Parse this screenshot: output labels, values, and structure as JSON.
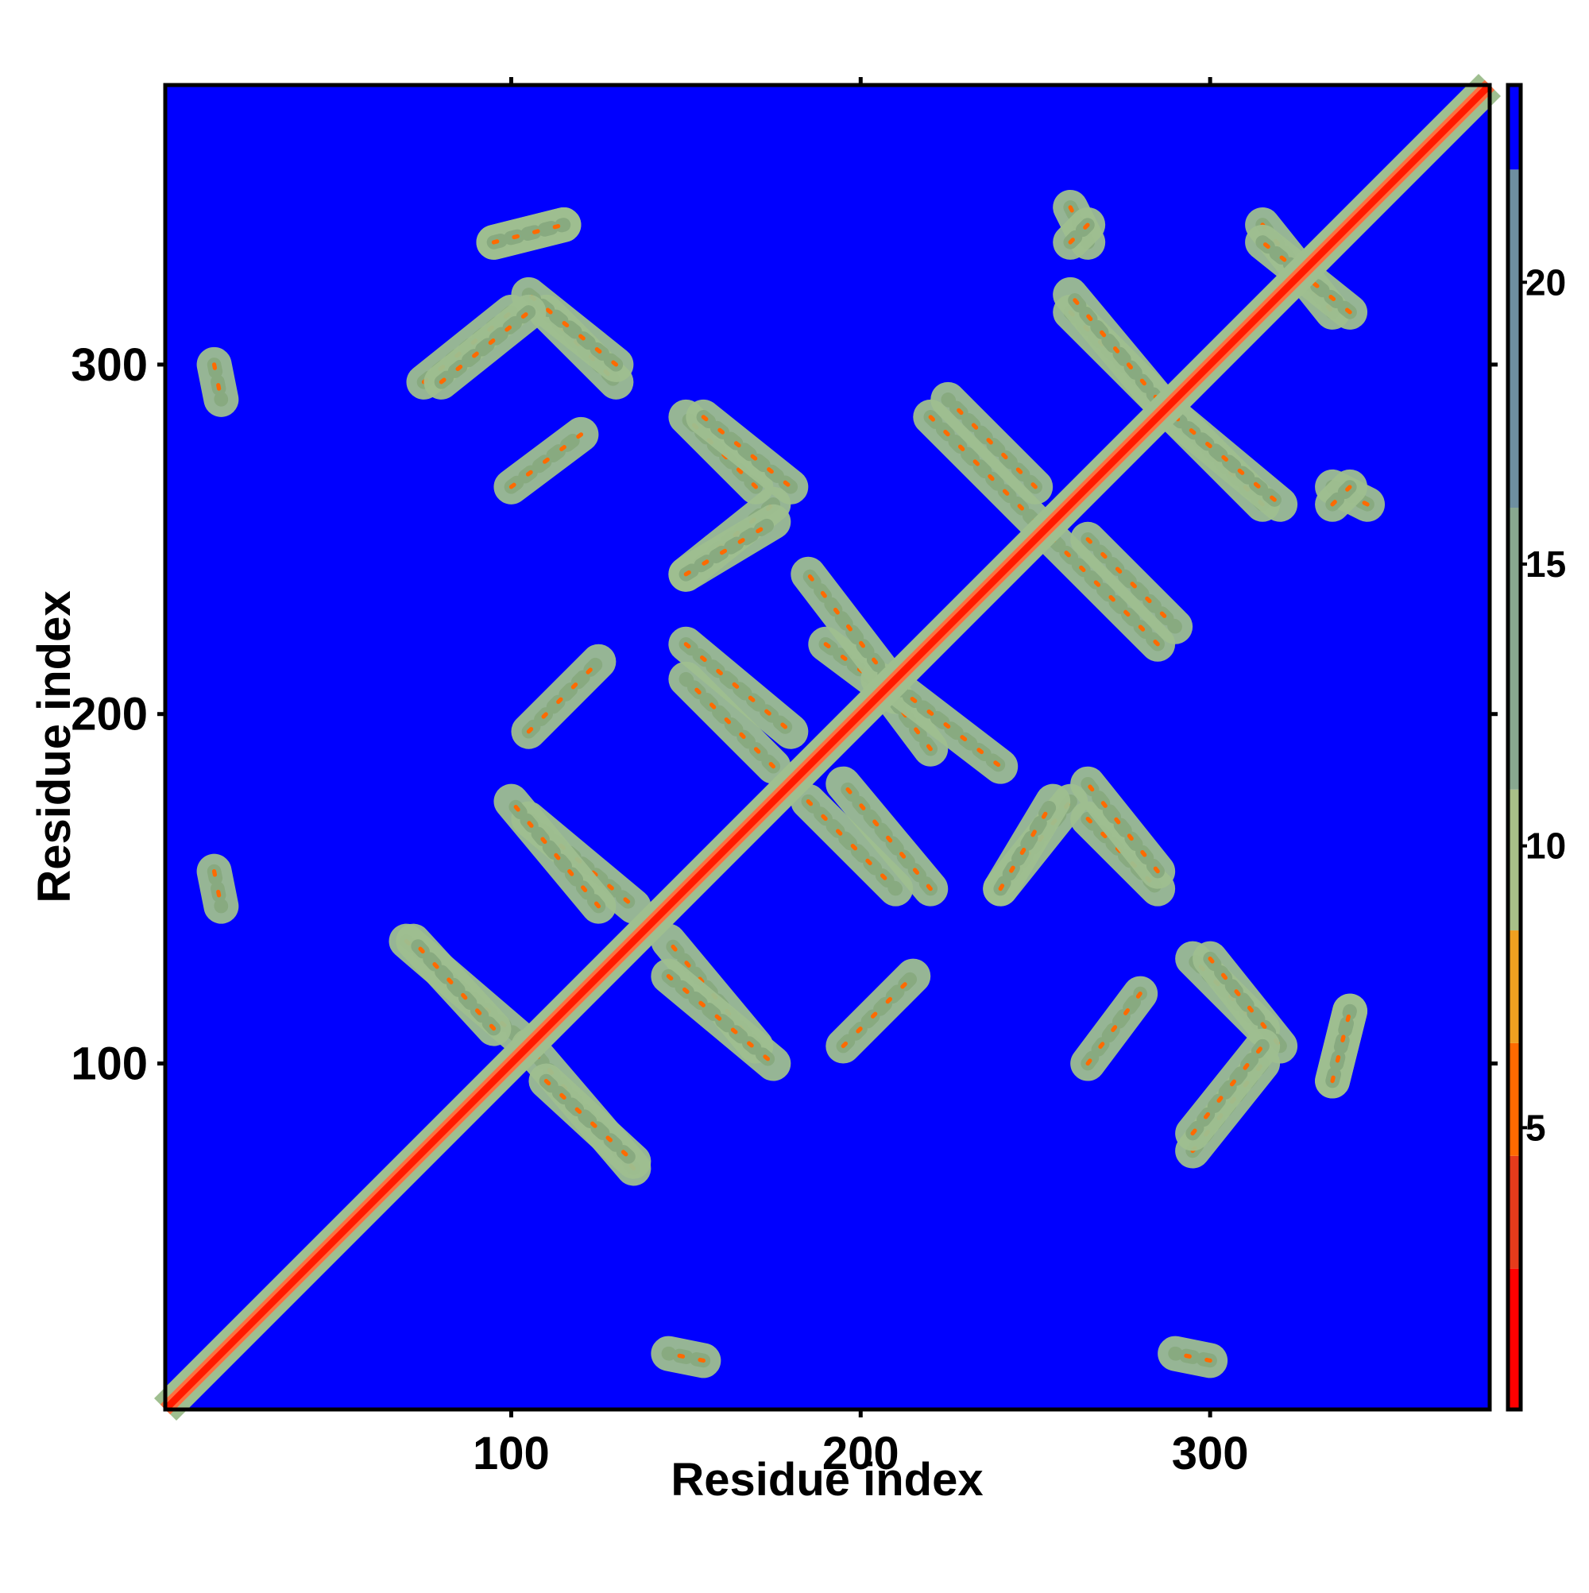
{
  "chart_data": {
    "type": "heatmap",
    "title": "",
    "xlabel": "Residue index",
    "ylabel": "Residue index",
    "xlim": [
      1,
      380
    ],
    "ylim": [
      1,
      380
    ],
    "x_ticks": [
      100,
      200,
      300
    ],
    "y_ticks": [
      100,
      200,
      300
    ],
    "grid": false,
    "legend_position": "right",
    "colorbar": {
      "ticks": [
        5,
        10,
        15,
        20
      ],
      "range": [
        0,
        23.5
      ],
      "segments": [
        {
          "from": 0,
          "to": 2.5,
          "color": "#ff0000"
        },
        {
          "from": 2.5,
          "to": 4.5,
          "color": "#e63b1b"
        },
        {
          "from": 4.5,
          "to": 6.5,
          "color": "#ff6a00"
        },
        {
          "from": 6.5,
          "to": 8.5,
          "color": "#f0a020"
        },
        {
          "from": 8.5,
          "to": 11.0,
          "color": "#a8c088"
        },
        {
          "from": 11.0,
          "to": 16.0,
          "color": "#88a890"
        },
        {
          "from": 16.0,
          "to": 22.0,
          "color": "#6e8fa0"
        },
        {
          "from": 22.0,
          "to": 23.5,
          "color": "#0000ff"
        }
      ]
    },
    "background_value": 23,
    "background_color": "#0000ff",
    "diagonal": {
      "core_color": "#ff1a00",
      "band_color": "#ff7040",
      "halo_color": "#9fbf90"
    },
    "contact_regions": [
      {
        "x1": 70,
        "y1": 135,
        "x2": 105,
        "y2": 105
      },
      {
        "x1": 110,
        "y1": 95,
        "x2": 135,
        "y2": 72
      },
      {
        "x1": 105,
        "y1": 170,
        "x2": 135,
        "y2": 145
      },
      {
        "x1": 145,
        "y1": 125,
        "x2": 175,
        "y2": 100
      },
      {
        "x1": 105,
        "y1": 195,
        "x2": 125,
        "y2": 215
      },
      {
        "x1": 150,
        "y1": 220,
        "x2": 180,
        "y2": 195
      },
      {
        "x1": 185,
        "y1": 175,
        "x2": 210,
        "y2": 150
      },
      {
        "x1": 190,
        "y1": 220,
        "x2": 210,
        "y2": 205
      },
      {
        "x1": 210,
        "y1": 208,
        "x2": 240,
        "y2": 185
      },
      {
        "x1": 240,
        "y1": 150,
        "x2": 260,
        "y2": 175
      },
      {
        "x1": 265,
        "y1": 170,
        "x2": 285,
        "y2": 150
      },
      {
        "x1": 150,
        "y1": 240,
        "x2": 175,
        "y2": 255
      },
      {
        "x1": 155,
        "y1": 285,
        "x2": 180,
        "y2": 265
      },
      {
        "x1": 220,
        "y1": 285,
        "x2": 250,
        "y2": 255
      },
      {
        "x1": 265,
        "y1": 250,
        "x2": 290,
        "y2": 225
      },
      {
        "x1": 260,
        "y1": 315,
        "x2": 285,
        "y2": 290
      },
      {
        "x1": 290,
        "y1": 285,
        "x2": 320,
        "y2": 260
      },
      {
        "x1": 75,
        "y1": 295,
        "x2": 100,
        "y2": 315
      },
      {
        "x1": 110,
        "y1": 315,
        "x2": 130,
        "y2": 295
      },
      {
        "x1": 100,
        "y1": 265,
        "x2": 120,
        "y2": 280
      },
      {
        "x1": 300,
        "y1": 130,
        "x2": 320,
        "y2": 105
      },
      {
        "x1": 295,
        "y1": 80,
        "x2": 315,
        "y2": 105
      },
      {
        "x1": 335,
        "y1": 95,
        "x2": 340,
        "y2": 115
      },
      {
        "x1": 95,
        "y1": 335,
        "x2": 115,
        "y2": 340
      },
      {
        "x1": 260,
        "y1": 345,
        "x2": 265,
        "y2": 335
      },
      {
        "x1": 315,
        "y1": 340,
        "x2": 335,
        "y2": 315
      },
      {
        "x1": 335,
        "y1": 260,
        "x2": 340,
        "y2": 265
      },
      {
        "x1": 15,
        "y1": 300,
        "x2": 17,
        "y2": 290
      },
      {
        "x1": 15,
        "y1": 155,
        "x2": 17,
        "y2": 145
      }
    ]
  }
}
